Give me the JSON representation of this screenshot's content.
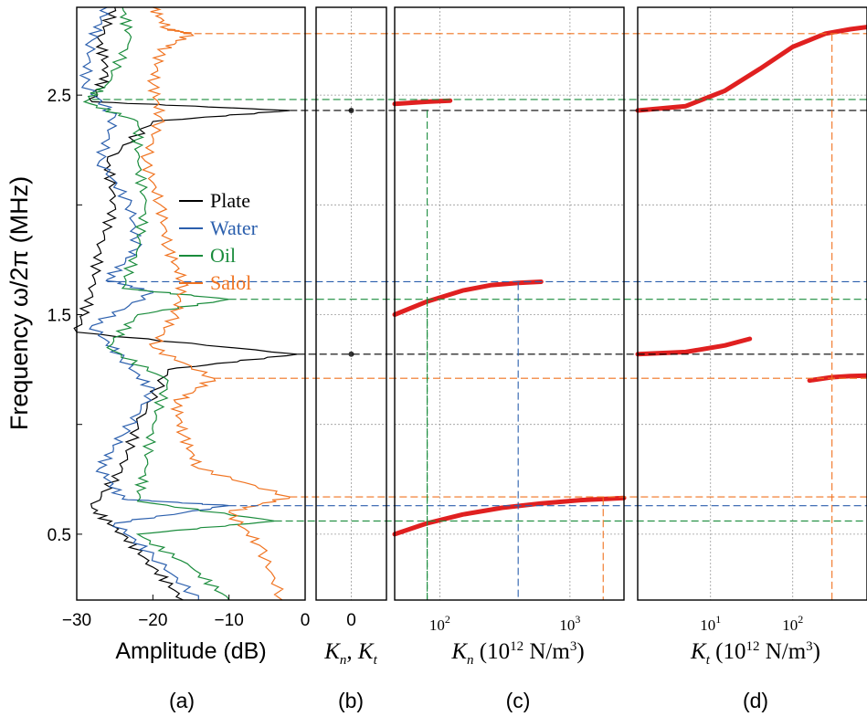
{
  "figure": {
    "ylabel": "Frequency  ω/2π  (MHz)",
    "yticks": [
      "2.5",
      "1.5",
      "0.5"
    ]
  },
  "chart_data": [
    {
      "panel_label": "(a)",
      "type": "line",
      "xlabel": "Amplitude (dB)",
      "xlim": [
        -30,
        0
      ],
      "ylim": [
        0.2,
        2.9
      ],
      "xticks": [
        "−30",
        "−20",
        "−10",
        "0"
      ],
      "grid": false,
      "legend_placement": "center",
      "series": [
        {
          "name": "Plate",
          "color": "#000000",
          "points": [
            [
              -25,
              2.9
            ],
            [
              -27,
              2.75
            ],
            [
              -26,
              2.6
            ],
            [
              -28,
              2.47
            ],
            [
              -2,
              2.43
            ],
            [
              -20,
              2.38
            ],
            [
              -26,
              2.2
            ],
            [
              -25,
              2.0
            ],
            [
              -27,
              1.8
            ],
            [
              -28,
              1.6
            ],
            [
              -30,
              1.42
            ],
            [
              -1,
              1.32
            ],
            [
              -18,
              1.25
            ],
            [
              -22,
              1.0
            ],
            [
              -24,
              0.8
            ],
            [
              -28,
              0.62
            ],
            [
              -24,
              0.5
            ],
            [
              -20,
              0.35
            ],
            [
              -16,
              0.2
            ]
          ]
        },
        {
          "name": "Water",
          "color": "#2b5fad",
          "points": [
            [
              -26,
              2.9
            ],
            [
              -28,
              2.75
            ],
            [
              -29,
              2.55
            ],
            [
              -25,
              2.4
            ],
            [
              -27,
              2.2
            ],
            [
              -23,
              2.0
            ],
            [
              -22,
              1.8
            ],
            [
              -26,
              1.66
            ],
            [
              -20,
              1.6
            ],
            [
              -28,
              1.45
            ],
            [
              -24,
              1.3
            ],
            [
              -20,
              1.15
            ],
            [
              -24,
              0.95
            ],
            [
              -27,
              0.8
            ],
            [
              -24,
              0.66
            ],
            [
              -10,
              0.63
            ],
            [
              -25,
              0.55
            ],
            [
              -20,
              0.4
            ],
            [
              -14,
              0.2
            ]
          ]
        },
        {
          "name": "Oil",
          "color": "#1a8c3c",
          "points": [
            [
              -24,
              2.9
            ],
            [
              -23,
              2.75
            ],
            [
              -26,
              2.55
            ],
            [
              -29,
              2.47
            ],
            [
              -22,
              2.38
            ],
            [
              -22,
              2.2
            ],
            [
              -21,
              2.0
            ],
            [
              -22,
              1.8
            ],
            [
              -24,
              1.62
            ],
            [
              -10,
              1.57
            ],
            [
              -22,
              1.5
            ],
            [
              -26,
              1.35
            ],
            [
              -18,
              1.2
            ],
            [
              -20,
              1.0
            ],
            [
              -21,
              0.8
            ],
            [
              -22,
              0.65
            ],
            [
              -4,
              0.56
            ],
            [
              -22,
              0.5
            ],
            [
              -15,
              0.35
            ],
            [
              -10,
              0.2
            ]
          ]
        },
        {
          "name": "Salol",
          "color": "#f07320",
          "points": [
            [
              -20,
              2.9
            ],
            [
              -18,
              2.8
            ],
            [
              -15,
              2.78
            ],
            [
              -19,
              2.7
            ],
            [
              -20,
              2.55
            ],
            [
              -19,
              2.4
            ],
            [
              -21,
              2.2
            ],
            [
              -19,
              2.0
            ],
            [
              -18,
              1.8
            ],
            [
              -16,
              1.65
            ],
            [
              -17,
              1.5
            ],
            [
              -20,
              1.35
            ],
            [
              -12,
              1.21
            ],
            [
              -17,
              1.1
            ],
            [
              -16,
              0.95
            ],
            [
              -14,
              0.8
            ],
            [
              -2,
              0.67
            ],
            [
              -10,
              0.6
            ],
            [
              -6,
              0.45
            ],
            [
              -3,
              0.2
            ]
          ]
        }
      ]
    },
    {
      "panel_label": "(b)",
      "type": "scatter",
      "xlabel_parts": {
        "k1": "K",
        "s1": "n",
        "sep": ", ",
        "k2": "K",
        "s2": "t"
      },
      "xticks": [
        "0"
      ],
      "ylim": [
        0.2,
        2.9
      ],
      "grid": true,
      "points": [
        [
          0,
          2.43
        ],
        [
          0,
          1.32
        ]
      ]
    },
    {
      "panel_label": "(c)",
      "type": "line",
      "xscale": "log",
      "xlim": [
        45,
        2600
      ],
      "ylim": [
        0.2,
        2.9
      ],
      "xlabel_parts": {
        "k": "K",
        "s": "n",
        "rest": " (10",
        "exp": "12",
        "unit": " N/m",
        "cube": "3",
        "close": ")"
      },
      "xticks": [
        {
          "base": "10",
          "exp": "2",
          "value": 100
        },
        {
          "base": "10",
          "exp": "3",
          "value": 1000
        }
      ],
      "grid": true,
      "series": [
        {
          "color": "#e02020",
          "points": [
            [
              45,
              2.46
            ],
            [
              80,
              2.47
            ],
            [
              120,
              2.475
            ]
          ]
        },
        {
          "color": "#e02020",
          "points": [
            [
              45,
              1.5
            ],
            [
              80,
              1.56
            ],
            [
              150,
              1.61
            ],
            [
              250,
              1.635
            ],
            [
              400,
              1.645
            ],
            [
              600,
              1.65
            ]
          ]
        },
        {
          "color": "#e02020",
          "points": [
            [
              45,
              0.5
            ],
            [
              80,
              0.55
            ],
            [
              150,
              0.59
            ],
            [
              300,
              0.62
            ],
            [
              600,
              0.64
            ],
            [
              1200,
              0.655
            ],
            [
              2600,
              0.665
            ]
          ]
        }
      ]
    },
    {
      "panel_label": "(d)",
      "type": "line",
      "xscale": "log",
      "xlim": [
        1.3,
        800
      ],
      "ylim": [
        0.2,
        2.9
      ],
      "xlabel_parts": {
        "k": "K",
        "s": "t",
        "rest": " (10",
        "exp": "12",
        "unit": " N/m",
        "cube": "3",
        "close": ")"
      },
      "xticks": [
        {
          "base": "10",
          "exp": "1",
          "value": 10
        },
        {
          "base": "10",
          "exp": "2",
          "value": 100
        }
      ],
      "grid": true,
      "series": [
        {
          "color": "#e02020",
          "points": [
            [
              1.3,
              2.43
            ],
            [
              5,
              2.45
            ],
            [
              15,
              2.52
            ],
            [
              40,
              2.62
            ],
            [
              100,
              2.72
            ],
            [
              250,
              2.78
            ],
            [
              500,
              2.8
            ],
            [
              800,
              2.81
            ]
          ]
        },
        {
          "color": "#e02020",
          "points": [
            [
              1.3,
              1.32
            ],
            [
              5,
              1.33
            ],
            [
              15,
              1.36
            ],
            [
              30,
              1.39
            ]
          ]
        },
        {
          "color": "#e02020",
          "points": [
            [
              160,
              1.2
            ],
            [
              300,
              1.215
            ],
            [
              500,
              1.22
            ],
            [
              800,
              1.222
            ]
          ]
        }
      ]
    }
  ],
  "reference_lines": [
    {
      "y": 2.78,
      "color": "#f07320",
      "from_x": -16
    },
    {
      "y": 2.48,
      "color": "#1a8c3c",
      "from_x": -28
    },
    {
      "y": 2.43,
      "color": "#000000",
      "from_x": -2
    },
    {
      "y": 1.65,
      "color": "#2b5fad",
      "from_x": -26
    },
    {
      "y": 1.57,
      "color": "#1a8c3c",
      "from_x": -10
    },
    {
      "y": 1.32,
      "color": "#000000",
      "from_x": -1
    },
    {
      "y": 1.21,
      "color": "#f07320",
      "from_x": -12
    },
    {
      "y": 0.67,
      "color": "#f07320",
      "from_x": -2
    },
    {
      "y": 0.63,
      "color": "#2b5fad",
      "from_x": -10
    },
    {
      "y": 0.56,
      "color": "#1a8c3c",
      "from_x": -4
    }
  ]
}
